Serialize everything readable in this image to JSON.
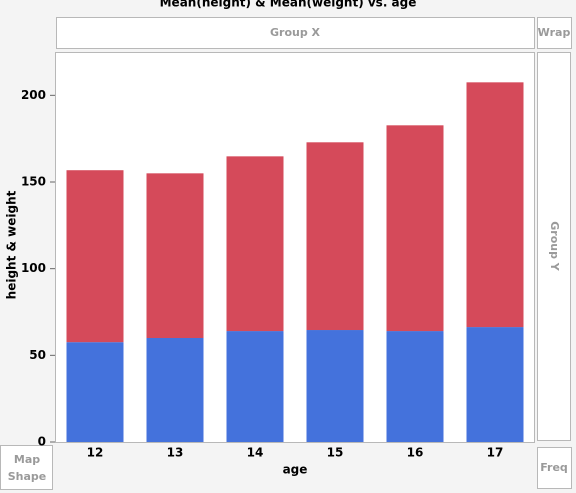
{
  "chart_data": {
    "type": "bar",
    "stacked": true,
    "title": "Mean(height) & Mean(weight) vs. age",
    "x_label": "age",
    "y_label": "height & weight",
    "categories": [
      "12",
      "13",
      "14",
      "15",
      "16",
      "17"
    ],
    "series": [
      {
        "color": "#4472dc",
        "values": [
          57.6,
          60.0,
          64.0,
          64.6,
          64.0,
          66.3
        ]
      },
      {
        "color": "#d54a5a",
        "values": [
          99.2,
          95.0,
          100.8,
          108.3,
          118.7,
          141.2
        ]
      }
    ],
    "ylim": [
      0,
      225
    ],
    "yticks": [
      0,
      50,
      100,
      150,
      200
    ],
    "grid": false
  },
  "drop_zones": {
    "group_x": "Group X",
    "wrap": "Wrap",
    "group_y": "Group Y",
    "map_shape": [
      "Map",
      "Shape"
    ],
    "freq": "Freq"
  }
}
